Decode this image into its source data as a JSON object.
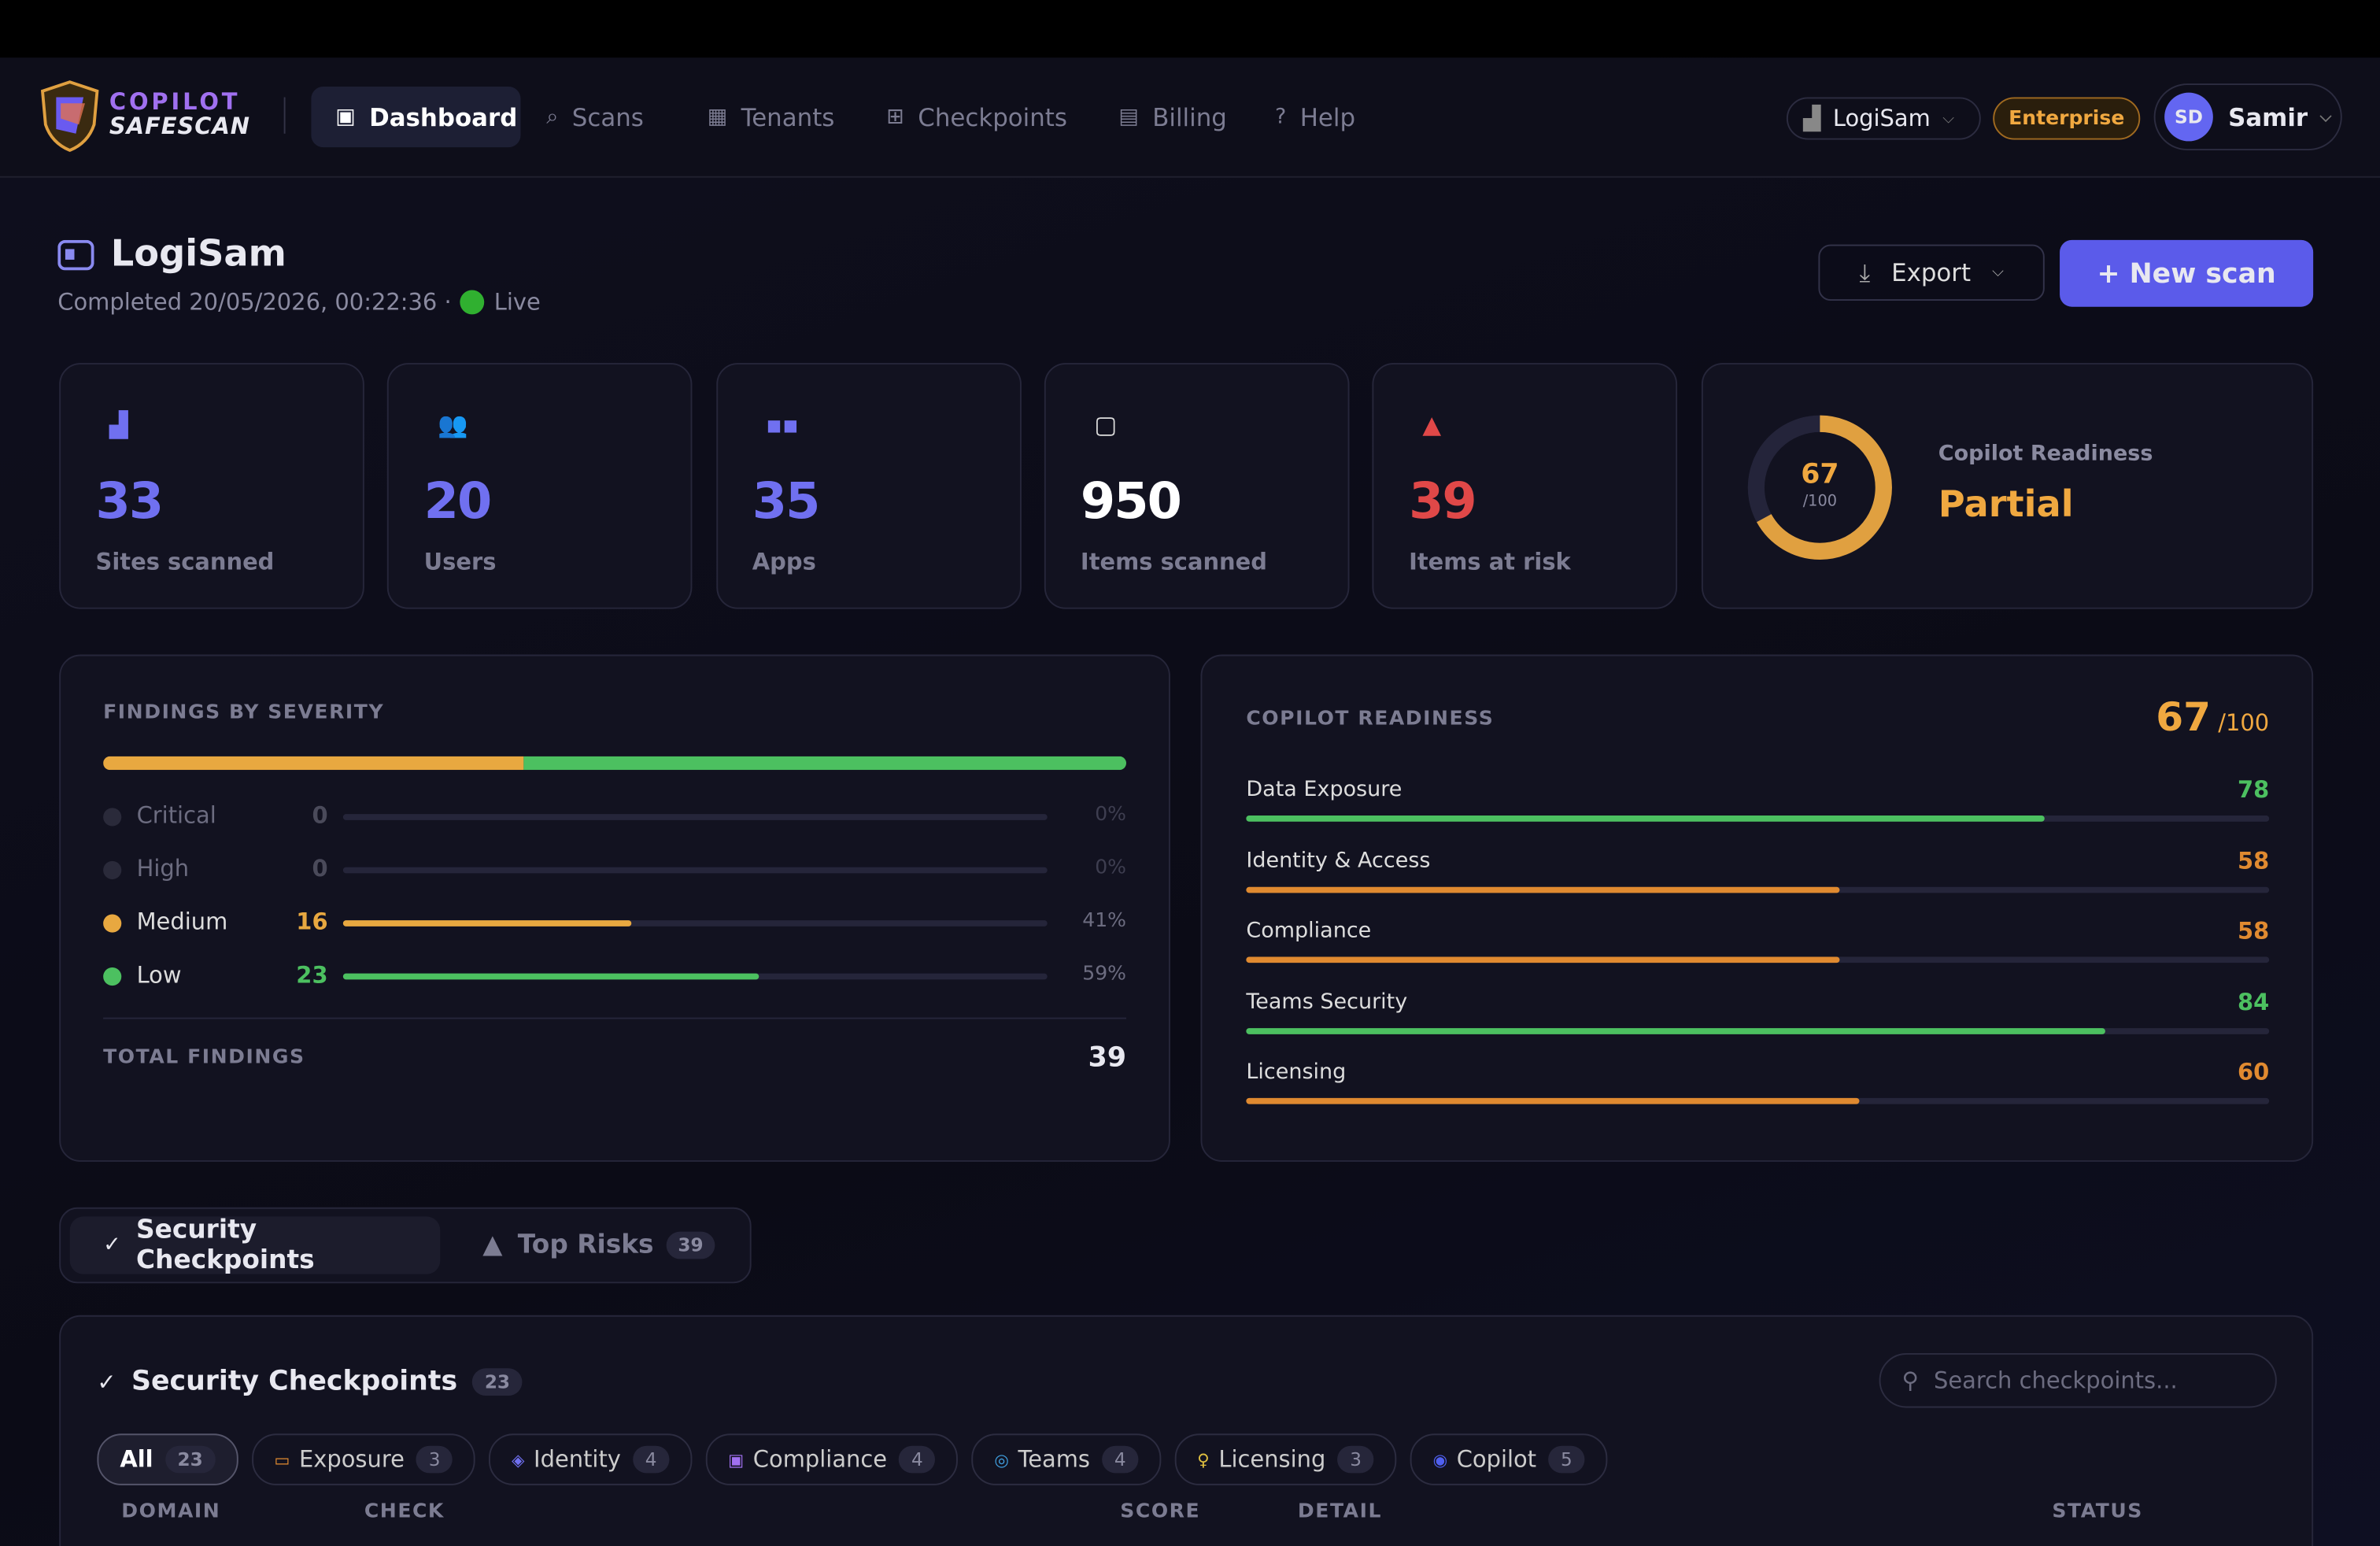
{
  "nav": {
    "brand_top": "COPILOT",
    "brand_bottom": "SAFESCAN",
    "items": [
      "Dashboard",
      "Scans",
      "Tenants",
      "Checkpoints",
      "Billing",
      "Help"
    ],
    "tenant": "LogiSam",
    "plan": "Enterprise",
    "avatar": "SD",
    "user": "Samir"
  },
  "header": {
    "title": "LogiSam",
    "completed": "Completed 20/05/2026, 00:22:36 ·",
    "status": "Live",
    "export": "Export",
    "new_scan": "+ New scan"
  },
  "stats": [
    {
      "value": 33,
      "label": "Sites scanned"
    },
    {
      "value": 20,
      "label": "Users"
    },
    {
      "value": 35,
      "label": "Apps"
    },
    {
      "value": 950,
      "label": "Items scanned"
    },
    {
      "value": 39,
      "label": "Items at risk"
    }
  ],
  "readiness_card": {
    "score": 67,
    "max": {
      "value": 100,
      "label": "/100"
    },
    "label": "Copilot Readiness",
    "status": "Partial"
  },
  "severity": {
    "title": "FINDINGS BY SEVERITY",
    "rows": [
      {
        "name": "Critical",
        "count": 0,
        "pct": "0%"
      },
      {
        "name": "High",
        "count": 0,
        "pct": "0%"
      },
      {
        "name": "Medium",
        "count": 16,
        "pct": "41%"
      },
      {
        "name": "Low",
        "count": 23,
        "pct": "59%"
      }
    ],
    "total_label": "TOTAL FINDINGS",
    "total": 39
  },
  "readiness": {
    "title": "COPILOT READINESS",
    "score": 67,
    "max": {
      "value": 100,
      "label": "/100"
    },
    "rows": [
      {
        "name": "Data Exposure",
        "score": 78
      },
      {
        "name": "Identity & Access",
        "score": 58
      },
      {
        "name": "Compliance",
        "score": 58
      },
      {
        "name": "Teams Security",
        "score": 84
      },
      {
        "name": "Licensing",
        "score": 60
      }
    ]
  },
  "tabs": [
    {
      "label": "Security Checkpoints"
    },
    {
      "label": "Top Risks",
      "count": 39
    }
  ],
  "checkpoints": {
    "title": "Security Checkpoints",
    "count": 23,
    "search": "Search checkpoints...",
    "filters": [
      {
        "label": "All",
        "count": 23
      },
      {
        "label": "Exposure",
        "count": 3
      },
      {
        "label": "Identity",
        "count": 4
      },
      {
        "label": "Compliance",
        "count": 4
      },
      {
        "label": "Teams",
        "count": 4
      },
      {
        "label": "Licensing",
        "count": 3
      },
      {
        "label": "Copilot",
        "count": 5
      }
    ],
    "columns": [
      "DOMAIN",
      "CHECK",
      "SCORE",
      "DETAIL",
      "STATUS"
    ]
  }
}
